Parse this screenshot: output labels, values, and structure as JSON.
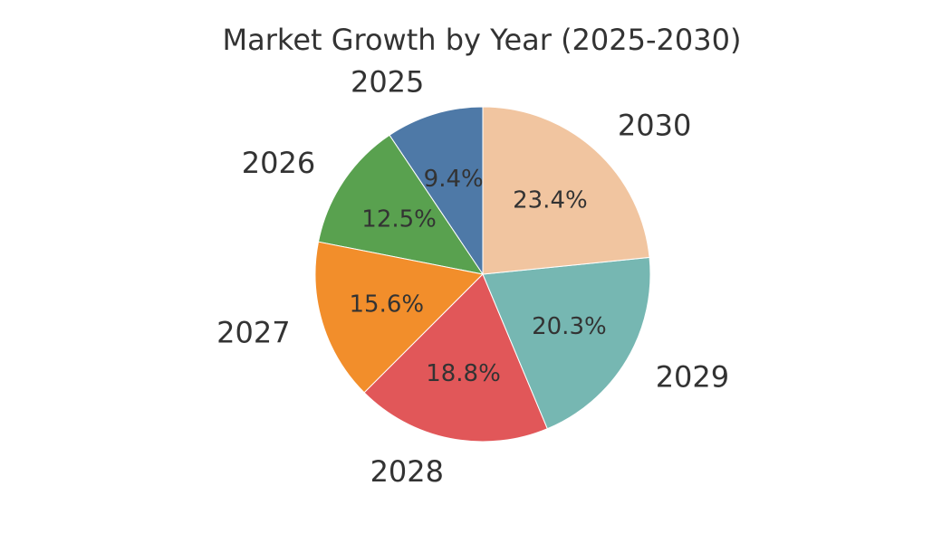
{
  "chart_data": {
    "type": "pie",
    "title": "Market Growth by Year (2025-2030)",
    "categories": [
      "2025",
      "2026",
      "2027",
      "2028",
      "2029",
      "2030"
    ],
    "values": [
      9.4,
      12.5,
      15.6,
      18.8,
      20.3,
      23.4
    ],
    "value_labels": [
      "9.4%",
      "12.5%",
      "15.6%",
      "18.8%",
      "20.3%",
      "23.4%"
    ],
    "colors": [
      "#4e79a7",
      "#59a14f",
      "#f28e2b",
      "#e15759",
      "#76b7b2",
      "#f1c5a0"
    ],
    "start": "top",
    "direction": "counterclockwise",
    "legend": "none"
  }
}
